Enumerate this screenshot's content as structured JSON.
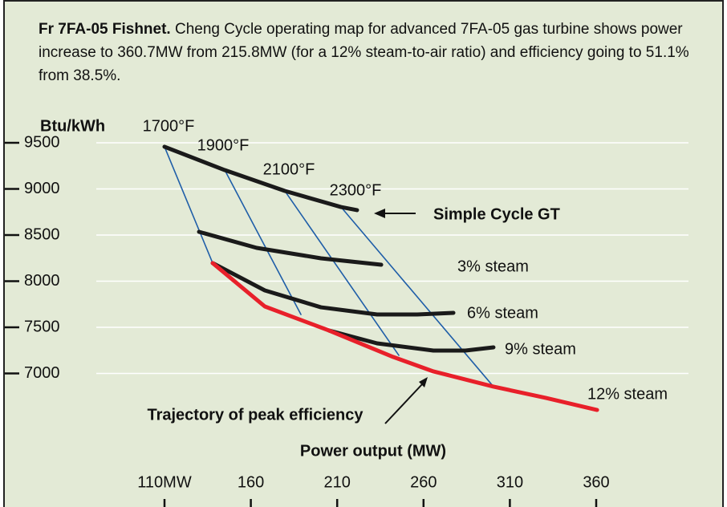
{
  "caption": {
    "title": "Fr 7FA-05 Fishnet.",
    "text": "Cheng Cycle operating map for advanced 7FA-05 gas turbine shows power increase to 360.7MW from 215.8MW (for a 12% steam-to-air ratio) and efficiency going to 51.1% from 38.5%."
  },
  "chart_data": {
    "type": "line",
    "y_label": "Btu/kWh",
    "x_label": "Power output (MW)",
    "xlim": [
      110,
      360
    ],
    "xticks": [
      {
        "value": 110,
        "label": "110MW"
      },
      160,
      210,
      260,
      310,
      360
    ],
    "ylim": [
      6500,
      9700
    ],
    "yticks": [
      9500,
      9000,
      8500,
      8000,
      7500,
      7000
    ],
    "grid": true,
    "annotations": [
      "Trajectory of peak efficiency"
    ],
    "series": [
      {
        "name": "1700°F",
        "color": "#1f5ea8",
        "x": [
          110,
          137.9
        ],
        "values": [
          9457,
          8196
        ]
      },
      {
        "name": "1900°F",
        "color": "#1f5ea8",
        "x": [
          144.9,
          189.0
        ],
        "values": [
          9204,
          7639
        ]
      },
      {
        "name": "2100°F",
        "color": "#1f5ea8",
        "x": [
          179.7,
          245.7
        ],
        "values": [
          8978,
          7196
        ]
      },
      {
        "name": "2300°F",
        "color": "#1f5ea8",
        "x": [
          212.2,
          300.5
        ],
        "values": [
          8804,
          6857
        ]
      },
      {
        "name": "Simple Cycle GT",
        "color": "#1a1a1a",
        "x": [
          110,
          144.9,
          179.7,
          212.2,
          221.5
        ],
        "values": [
          9457,
          9204,
          8978,
          8804,
          8770
        ]
      },
      {
        "name": "3% steam",
        "color": "#1a1a1a",
        "x": [
          130,
          163.4,
          200.6,
          235.5
        ],
        "values": [
          8535,
          8361,
          8248,
          8178
        ]
      },
      {
        "name": "6% steam",
        "color": "#1a1a1a",
        "x": [
          137.9,
          168.1,
          200.6,
          233.1,
          256.4,
          277.3
        ],
        "values": [
          8196,
          7900,
          7717,
          7639,
          7639,
          7657
        ]
      },
      {
        "name": "9% steam",
        "color": "#1a1a1a",
        "x": [
          205.3,
          233.1,
          265.7,
          284.3,
          300.5
        ],
        "values": [
          7465,
          7326,
          7248,
          7248,
          7283
        ]
      },
      {
        "name": "12% steam",
        "color": "#e8202a",
        "x": [
          137.9,
          168.1,
          205.3,
          242.5,
          265.7,
          300.5,
          330.7,
          360.5
        ],
        "values": [
          8196,
          7726,
          7465,
          7178,
          7022,
          6857,
          6735,
          6604
        ]
      }
    ]
  }
}
